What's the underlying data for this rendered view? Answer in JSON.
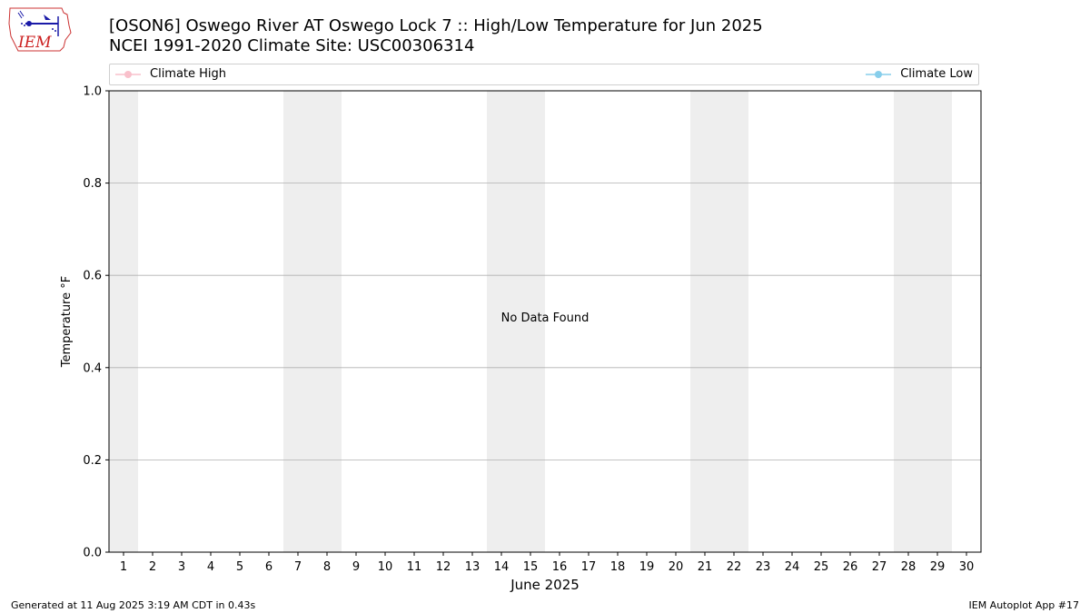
{
  "header": {
    "title_line1": "[OSON6] Oswego River  AT Oswego Lock 7 :: High/Low Temperature for Jun 2025",
    "title_line2": "NCEI 1991-2020 Climate Site: USC00306314",
    "logo_text": "IEM"
  },
  "footer": {
    "left": "Generated at 11 Aug 2025 3:19 AM CDT in 0.43s",
    "right": "IEM Autoplot App #17"
  },
  "colors": {
    "climate_high": "#f9c0cb",
    "climate_low": "#87ceeb",
    "weekend_band": "#eeeeee",
    "grid": "#b0b0b0"
  },
  "chart_data": {
    "type": "line",
    "xlabel": "June 2025",
    "ylabel": "Temperature °F",
    "xlim": [
      0.5,
      30.5
    ],
    "ylim": [
      0.0,
      1.0
    ],
    "x_ticks": [
      1,
      2,
      3,
      4,
      5,
      6,
      7,
      8,
      9,
      10,
      11,
      12,
      13,
      14,
      15,
      16,
      17,
      18,
      19,
      20,
      21,
      22,
      23,
      24,
      25,
      26,
      27,
      28,
      29,
      30
    ],
    "y_ticks": [
      0.0,
      0.2,
      0.4,
      0.6,
      0.8,
      1.0
    ],
    "y_tick_labels": [
      "0.0",
      "0.2",
      "0.4",
      "0.6",
      "0.8",
      "1.0"
    ],
    "grid": "y-axis",
    "shaded_days": [
      1,
      7,
      8,
      14,
      15,
      21,
      22,
      28,
      29
    ],
    "series": [
      {
        "name": "Climate High",
        "values": []
      },
      {
        "name": "Climate Low",
        "values": []
      }
    ],
    "legend": "top",
    "annotation": "No Data Found"
  }
}
